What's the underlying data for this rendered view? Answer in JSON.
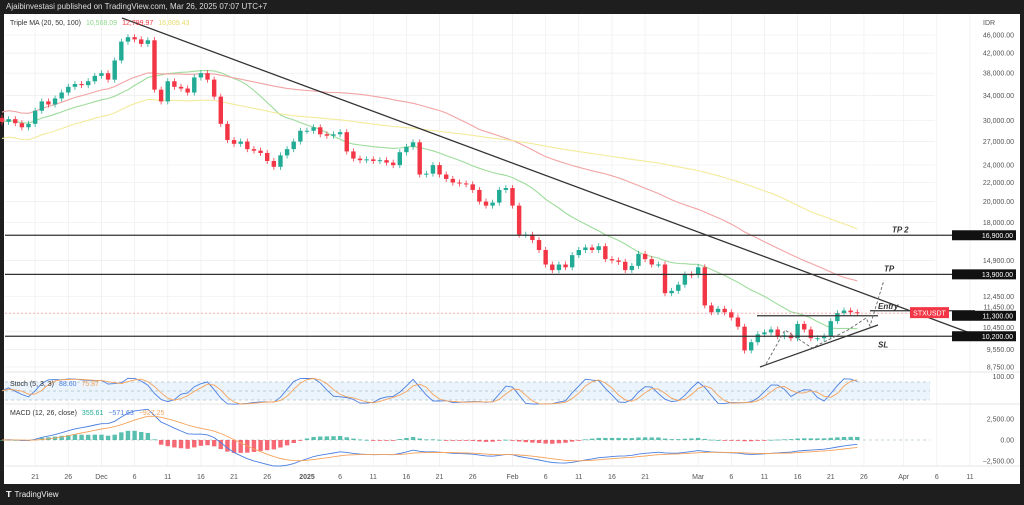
{
  "header": {
    "publisher_line": "Ajaibinvestasi published on TradingView.com, Mar 26, 2025 07:07 UTC+7"
  },
  "footer": {
    "logo_icon": "tradingview-logo-icon",
    "brand": "TradingView"
  },
  "colors": {
    "up": "#22ab94",
    "down": "#f23645",
    "ma20": "#9ddc9b",
    "ma50": "#f2a4a4",
    "ma100": "#f3eb9c",
    "stoch_k": "#4a7fe0",
    "stoch_d": "#f5a35c",
    "macd": "#4a7fe0",
    "signal": "#f5a35c"
  },
  "chart_data": {
    "type": "candlestick",
    "symbol_label": "STXUSDT",
    "currency": "IDR",
    "y_scale": "log",
    "ylim": [
      8750,
      46000
    ],
    "grid": true,
    "start_date": "2024-11-16",
    "closes": [
      29800,
      30200,
      29600,
      29000,
      29500,
      31500,
      33000,
      32500,
      33500,
      34500,
      35500,
      36000,
      35800,
      36500,
      37500,
      38000,
      36800,
      40500,
      44500,
      45500,
      45000,
      44000,
      44800,
      35000,
      33000,
      36500,
      35500,
      35200,
      34500,
      37200,
      38000,
      36800,
      33800,
      29500,
      27200,
      26700,
      27000,
      26000,
      25800,
      25500,
      24500,
      23800,
      25200,
      26000,
      27000,
      28500,
      28500,
      29000,
      28000,
      27800,
      28000,
      28300,
      25700,
      24800,
      24600,
      24700,
      24500,
      24600,
      24300,
      24000,
      25600,
      26300,
      26900,
      22900,
      23000,
      24000,
      22900,
      22400,
      22000,
      21900,
      21800,
      21200,
      20000,
      19600,
      19900,
      21200,
      21400,
      19600,
      16950,
      16950,
      16500,
      15700,
      14600,
      14200,
      14600,
      14400,
      15300,
      15700,
      15900,
      15700,
      16000,
      15000,
      14900,
      14800,
      14200,
      14500,
      15400,
      15000,
      14600,
      14600,
      12650,
      12800,
      13200,
      13900,
      13850,
      14400,
      11900,
      11500,
      11700,
      11500,
      11200,
      10700,
      9500,
      9900,
      10300,
      10400,
      10550,
      10200,
      10250,
      10100,
      10850,
      10550,
      10100,
      10100,
      10200,
      11000,
      11450,
      11600,
      11500,
      11450
    ],
    "last_price": "11,450.00",
    "price_ticks": [
      "46,000.00",
      "42,000.00",
      "38,000.00",
      "34,000.00",
      "30,000.00",
      "27,000.00",
      "24,000.00",
      "22,000.00",
      "20,000.00",
      "18,000.00",
      "14,900.00",
      "12,450.00",
      "11,450.00",
      "10,450.00",
      "9,550.00",
      "8,750.00"
    ],
    "price_tick_values": [
      46000,
      42000,
      38000,
      34000,
      30000,
      27000,
      24000,
      22000,
      20000,
      18000,
      14900,
      12450,
      11450,
      10450,
      9550,
      8750
    ],
    "levels": [
      {
        "name": "TP 2",
        "value": 16900,
        "label": "16,900.00"
      },
      {
        "name": "TP",
        "value": 13900,
        "label": "13,900.00"
      },
      {
        "name": "Entry",
        "value": 11300,
        "label": "11,300.00"
      },
      {
        "name": "SL",
        "value": 10200,
        "label": "10,200.00"
      }
    ],
    "time_ticks": [
      {
        "date": "2024-11-21",
        "label": "21"
      },
      {
        "date": "2024-11-26",
        "label": "26"
      },
      {
        "date": "2024-12-01",
        "label": "Dec"
      },
      {
        "date": "2024-12-06",
        "label": "6"
      },
      {
        "date": "2024-12-11",
        "label": "11"
      },
      {
        "date": "2024-12-16",
        "label": "16"
      },
      {
        "date": "2024-12-21",
        "label": "21"
      },
      {
        "date": "2024-12-26",
        "label": "26"
      },
      {
        "date": "2025-01-01",
        "label": "2025"
      },
      {
        "date": "2025-01-06",
        "label": "6"
      },
      {
        "date": "2025-01-11",
        "label": "11"
      },
      {
        "date": "2025-01-16",
        "label": "16"
      },
      {
        "date": "2025-01-21",
        "label": "21"
      },
      {
        "date": "2025-01-26",
        "label": "26"
      },
      {
        "date": "2025-02-01",
        "label": "Feb"
      },
      {
        "date": "2025-02-06",
        "label": "6"
      },
      {
        "date": "2025-02-11",
        "label": "11"
      },
      {
        "date": "2025-02-16",
        "label": "16"
      },
      {
        "date": "2025-02-21",
        "label": "21"
      },
      {
        "date": "2025-03-01",
        "label": "Mar"
      },
      {
        "date": "2025-03-06",
        "label": "6"
      },
      {
        "date": "2025-03-11",
        "label": "11"
      },
      {
        "date": "2025-03-16",
        "label": "16"
      },
      {
        "date": "2025-03-21",
        "label": "21"
      },
      {
        "date": "2025-03-26",
        "label": "26"
      },
      {
        "date": "2025-04-01",
        "label": "Apr"
      },
      {
        "date": "2025-04-06",
        "label": "6"
      },
      {
        "date": "2025-04-11",
        "label": "11"
      }
    ],
    "indicators": {
      "triple_ma": {
        "title": "Triple MA (20, 50, 100)",
        "values": [
          "10,568.09",
          "12,799.97",
          "16,809.43"
        ]
      },
      "stoch": {
        "title": "Stoch (5, 3, 3)",
        "values": [
          "88.60",
          "75.87"
        ],
        "tick": "100.00",
        "band": [
          20,
          80
        ]
      },
      "macd": {
        "title": "MACD (12, 26, close)",
        "values": [
          "355.61",
          "−571.63",
          "−927.25"
        ],
        "ticks": [
          "2,500.00",
          "0.00",
          "−2,500.00"
        ],
        "tick_values": [
          2500,
          0,
          -2500
        ]
      }
    }
  }
}
